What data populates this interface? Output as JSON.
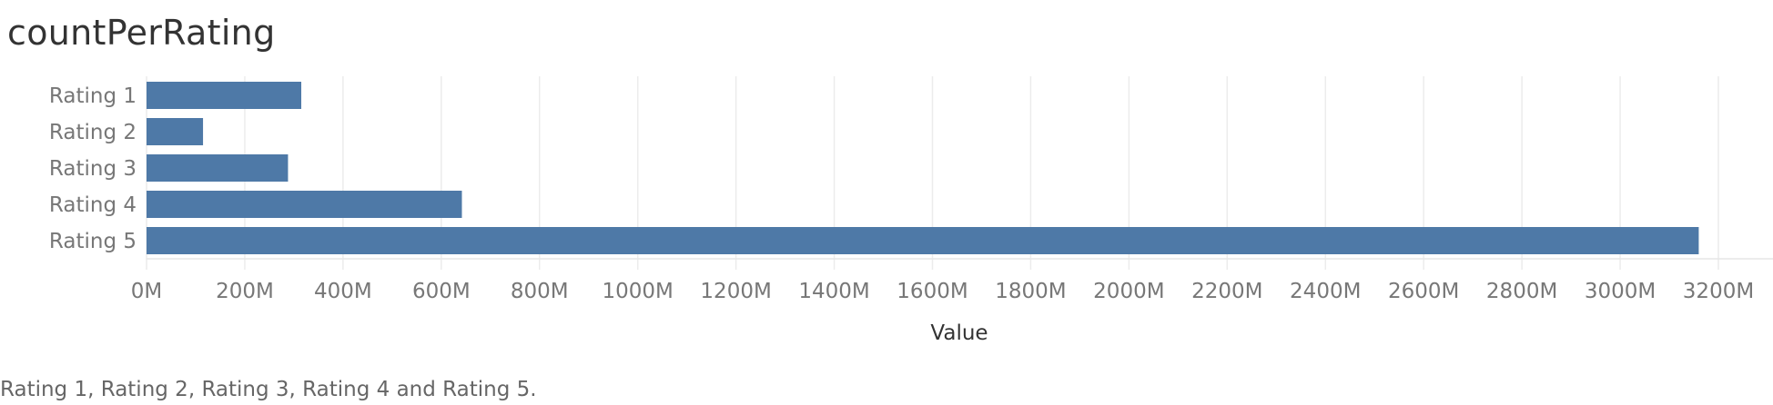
{
  "chart_data": {
    "type": "bar",
    "orientation": "horizontal",
    "title": "countPerRating",
    "xlabel": "Value",
    "ylabel": "",
    "categories": [
      "Rating 1",
      "Rating 2",
      "Rating 3",
      "Rating 4",
      "Rating 5"
    ],
    "values": [
      315000000,
      115000000,
      288000000,
      642000000,
      3160000000
    ],
    "xlim": [
      0,
      3200000000
    ],
    "xticks": [
      "0M",
      "200M",
      "400M",
      "600M",
      "800M",
      "1000M",
      "1200M",
      "1400M",
      "1600M",
      "1800M",
      "2000M",
      "2200M",
      "2400M",
      "2600M",
      "2800M",
      "3000M",
      "3200M"
    ],
    "grid": "vertical",
    "bar_color": "#4e79a7",
    "grid_color": "#ececec"
  },
  "caption": "Rating 1, Rating 2, Rating 3, Rating 4 and Rating 5."
}
